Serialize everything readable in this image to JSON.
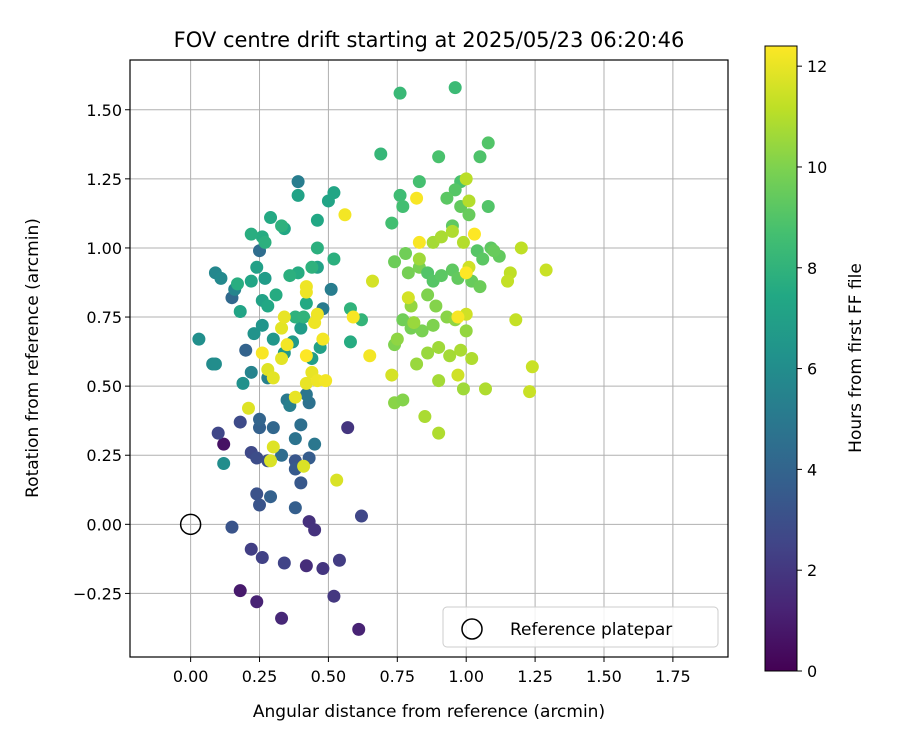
{
  "chart_data": {
    "type": "scatter",
    "title": "FOV centre drift starting at 2025/05/23 06:20:46",
    "xlabel": "Angular distance from reference (arcmin)",
    "ylabel": "Rotation from reference (arcmin)",
    "xlim": [
      -0.22,
      1.95
    ],
    "ylim": [
      -0.48,
      1.68
    ],
    "xticks": [
      "0.00",
      "0.25",
      "0.50",
      "0.75",
      "1.00",
      "1.25",
      "1.50",
      "1.75"
    ],
    "xtick_values": [
      0,
      0.25,
      0.5,
      0.75,
      1.0,
      1.25,
      1.5,
      1.75
    ],
    "yticks": [
      "−0.25",
      "0.00",
      "0.25",
      "0.50",
      "0.75",
      "1.00",
      "1.25",
      "1.50"
    ],
    "ytick_values": [
      -0.25,
      0,
      0.25,
      0.5,
      0.75,
      1.0,
      1.25,
      1.5
    ],
    "grid": true,
    "colorbar": {
      "label": "Hours from first FF file",
      "range": [
        0,
        12.4
      ],
      "ticks": [
        "0",
        "2",
        "4",
        "6",
        "8",
        "10",
        "12"
      ],
      "tick_values": [
        0,
        2,
        4,
        6,
        8,
        10,
        12
      ],
      "colormap": "viridis"
    },
    "legend": {
      "placement": "lower-right",
      "entries": [
        {
          "label": "Reference platepar",
          "marker": "open-circle"
        }
      ]
    },
    "reference_point": {
      "x": 0.0,
      "y": 0.0
    },
    "points": [
      [
        0.12,
        0.29,
        0.6
      ],
      [
        0.18,
        -0.24,
        0.9
      ],
      [
        0.24,
        -0.28,
        1.2
      ],
      [
        0.33,
        -0.34,
        1.4
      ],
      [
        0.61,
        -0.38,
        1.2
      ],
      [
        0.42,
        -0.15,
        1.6
      ],
      [
        0.43,
        0.01,
        1.7
      ],
      [
        0.45,
        -0.02,
        1.8
      ],
      [
        0.48,
        -0.16,
        1.9
      ],
      [
        0.52,
        -0.26,
        2.0
      ],
      [
        0.54,
        -0.13,
        2.2
      ],
      [
        0.22,
        -0.09,
        2.3
      ],
      [
        0.26,
        -0.12,
        2.4
      ],
      [
        0.34,
        -0.14,
        2.5
      ],
      [
        0.57,
        0.35,
        1.9
      ],
      [
        0.62,
        0.03,
        2.6
      ],
      [
        0.1,
        0.33,
        2.6
      ],
      [
        0.18,
        0.37,
        2.8
      ],
      [
        0.22,
        0.26,
        2.7
      ],
      [
        0.24,
        0.24,
        2.9
      ],
      [
        0.28,
        0.23,
        3.0
      ],
      [
        0.24,
        0.11,
        3.1
      ],
      [
        0.25,
        0.07,
        3.2
      ],
      [
        0.15,
        -0.01,
        3.2
      ],
      [
        0.38,
        0.23,
        3.3
      ],
      [
        0.4,
        0.15,
        3.4
      ],
      [
        0.38,
        0.2,
        3.5
      ],
      [
        0.43,
        0.24,
        3.6
      ],
      [
        0.38,
        0.06,
        3.7
      ],
      [
        0.29,
        0.1,
        3.8
      ],
      [
        0.25,
        0.35,
        3.8
      ],
      [
        0.25,
        0.38,
        4.0
      ],
      [
        0.3,
        0.35,
        4.1
      ],
      [
        0.2,
        0.63,
        3.9
      ],
      [
        0.15,
        0.82,
        4.2
      ],
      [
        0.25,
        0.99,
        4.4
      ],
      [
        0.33,
        0.25,
        4.4
      ],
      [
        0.4,
        0.36,
        4.5
      ],
      [
        0.43,
        0.44,
        4.6
      ],
      [
        0.38,
        0.31,
        4.7
      ],
      [
        0.42,
        0.47,
        4.8
      ],
      [
        0.45,
        0.29,
        4.9
      ],
      [
        0.35,
        0.45,
        5.0
      ],
      [
        0.48,
        0.78,
        5.1
      ],
      [
        0.51,
        0.85,
        5.2
      ],
      [
        0.39,
        1.24,
        5.2
      ],
      [
        0.36,
        0.43,
        5.3
      ],
      [
        0.28,
        0.53,
        5.4
      ],
      [
        0.22,
        0.55,
        5.5
      ],
      [
        0.16,
        0.85,
        5.6
      ],
      [
        0.09,
        0.91,
        5.7
      ],
      [
        0.11,
        0.89,
        5.8
      ],
      [
        0.08,
        0.58,
        5.9
      ],
      [
        0.09,
        0.58,
        6.0
      ],
      [
        0.12,
        0.22,
        6.0
      ],
      [
        0.03,
        0.67,
        6.1
      ],
      [
        0.19,
        0.51,
        6.2
      ],
      [
        0.23,
        0.69,
        6.3
      ],
      [
        0.26,
        0.72,
        6.4
      ],
      [
        0.3,
        0.67,
        6.5
      ],
      [
        0.34,
        0.62,
        6.6
      ],
      [
        0.37,
        0.66,
        6.7
      ],
      [
        0.4,
        0.71,
        6.8
      ],
      [
        0.44,
        0.6,
        6.9
      ],
      [
        0.47,
        0.64,
        7.0
      ],
      [
        0.46,
        0.93,
        7.1
      ],
      [
        0.39,
        1.19,
        7.1
      ],
      [
        0.5,
        1.17,
        7.2
      ],
      [
        0.52,
        1.2,
        7.3
      ],
      [
        0.46,
        1.1,
        7.4
      ],
      [
        0.34,
        1.07,
        7.4
      ],
      [
        0.29,
        1.11,
        7.5
      ],
      [
        0.26,
        1.04,
        7.6
      ],
      [
        0.22,
        1.05,
        7.7
      ],
      [
        0.27,
        1.02,
        7.8
      ],
      [
        0.33,
        1.08,
        7.9
      ],
      [
        0.44,
        0.93,
        7.9
      ],
      [
        0.39,
        0.91,
        7.6
      ],
      [
        0.42,
        0.8,
        7.5
      ],
      [
        0.46,
        1.0,
        7.8
      ],
      [
        0.17,
        0.87,
        7.7
      ],
      [
        0.18,
        0.77,
        7.2
      ],
      [
        0.22,
        0.88,
        7.3
      ],
      [
        0.24,
        0.93,
        7.0
      ],
      [
        0.27,
        0.89,
        6.8
      ],
      [
        0.26,
        0.81,
        7.1
      ],
      [
        0.28,
        0.79,
        7.4
      ],
      [
        0.31,
        0.83,
        7.6
      ],
      [
        0.36,
        0.9,
        7.8
      ],
      [
        0.38,
        0.75,
        7.9
      ],
      [
        0.41,
        0.75,
        8.0
      ],
      [
        0.58,
        0.66,
        7.6
      ],
      [
        0.52,
        0.96,
        7.8
      ],
      [
        0.58,
        0.78,
        8.0
      ],
      [
        0.62,
        0.74,
        8.1
      ],
      [
        0.69,
        1.34,
        8.2
      ],
      [
        0.76,
        1.56,
        8.3
      ],
      [
        0.96,
        1.58,
        8.4
      ],
      [
        0.76,
        1.19,
        8.5
      ],
      [
        0.77,
        1.15,
        8.6
      ],
      [
        0.73,
        1.09,
        8.6
      ],
      [
        0.83,
        1.24,
        8.7
      ],
      [
        0.9,
        1.33,
        8.8
      ],
      [
        0.98,
        1.24,
        8.8
      ],
      [
        1.05,
        1.33,
        8.9
      ],
      [
        1.08,
        1.38,
        9.0
      ],
      [
        0.96,
        1.21,
        9.1
      ],
      [
        0.93,
        1.18,
        9.2
      ],
      [
        0.95,
        1.08,
        9.3
      ],
      [
        0.98,
        1.15,
        9.4
      ],
      [
        1.01,
        1.12,
        9.5
      ],
      [
        1.08,
        1.15,
        9.0
      ],
      [
        1.04,
        0.99,
        9.1
      ],
      [
        1.06,
        0.96,
        9.2
      ],
      [
        1.09,
        1.0,
        9.3
      ],
      [
        1.12,
        0.97,
        9.4
      ],
      [
        1.1,
        0.99,
        9.5
      ],
      [
        0.74,
        0.95,
        9.6
      ],
      [
        0.78,
        0.98,
        9.7
      ],
      [
        0.79,
        0.91,
        9.8
      ],
      [
        0.83,
        0.93,
        9.9
      ],
      [
        0.86,
        0.91,
        9.0
      ],
      [
        0.88,
        0.88,
        9.1
      ],
      [
        0.91,
        0.9,
        9.2
      ],
      [
        0.95,
        0.92,
        9.3
      ],
      [
        0.97,
        0.89,
        9.4
      ],
      [
        1.02,
        0.88,
        9.5
      ],
      [
        1.05,
        0.86,
        9.6
      ],
      [
        0.77,
        0.74,
        9.7
      ],
      [
        0.8,
        0.71,
        9.8
      ],
      [
        0.84,
        0.7,
        9.9
      ],
      [
        0.88,
        0.72,
        10.0
      ],
      [
        0.86,
        0.83,
        10.0
      ],
      [
        0.89,
        0.79,
        10.1
      ],
      [
        0.93,
        0.75,
        10.2
      ],
      [
        0.96,
        0.74,
        10.3
      ],
      [
        1.0,
        0.7,
        10.4
      ],
      [
        0.82,
        0.58,
        10.5
      ],
      [
        0.86,
        0.62,
        10.5
      ],
      [
        0.9,
        0.64,
        10.6
      ],
      [
        0.94,
        0.61,
        10.7
      ],
      [
        0.98,
        0.63,
        10.8
      ],
      [
        1.02,
        0.6,
        10.9
      ],
      [
        1.07,
        0.49,
        10.9
      ],
      [
        0.99,
        0.49,
        10.6
      ],
      [
        0.9,
        0.52,
        10.7
      ],
      [
        0.85,
        0.39,
        10.8
      ],
      [
        0.9,
        0.33,
        10.9
      ],
      [
        0.74,
        0.44,
        10.2
      ],
      [
        0.77,
        0.45,
        10.1
      ],
      [
        0.74,
        0.65,
        10.0
      ],
      [
        0.75,
        0.67,
        10.3
      ],
      [
        0.8,
        0.79,
        10.4
      ],
      [
        0.81,
        0.73,
        10.5
      ],
      [
        0.83,
        0.96,
        10.6
      ],
      [
        0.88,
        1.02,
        10.7
      ],
      [
        0.91,
        1.04,
        10.8
      ],
      [
        0.95,
        1.06,
        10.9
      ],
      [
        0.99,
        1.02,
        11.0
      ],
      [
        1.01,
        1.17,
        11.0
      ],
      [
        1.0,
        1.25,
        11.1
      ],
      [
        1.16,
        0.91,
        11.2
      ],
      [
        1.2,
        1.0,
        11.2
      ],
      [
        1.15,
        0.88,
        11.3
      ],
      [
        1.18,
        0.74,
        11.3
      ],
      [
        1.23,
        0.48,
        11.4
      ],
      [
        1.24,
        0.57,
        11.4
      ],
      [
        1.29,
        0.92,
        11.4
      ],
      [
        1.01,
        0.93,
        11.5
      ],
      [
        1.0,
        0.76,
        11.5
      ],
      [
        0.97,
        0.54,
        11.5
      ],
      [
        0.79,
        0.82,
        11.6
      ],
      [
        0.73,
        0.54,
        11.6
      ],
      [
        0.66,
        0.88,
        11.6
      ],
      [
        0.53,
        0.16,
        11.7
      ],
      [
        0.41,
        0.21,
        11.7
      ],
      [
        0.29,
        0.23,
        11.7
      ],
      [
        0.3,
        0.28,
        11.8
      ],
      [
        0.21,
        0.42,
        11.8
      ],
      [
        0.28,
        0.56,
        11.8
      ],
      [
        0.3,
        0.53,
        11.9
      ],
      [
        0.33,
        0.6,
        11.9
      ],
      [
        0.33,
        0.71,
        11.9
      ],
      [
        0.38,
        0.46,
        12.0
      ],
      [
        0.42,
        0.51,
        12.0
      ],
      [
        0.44,
        0.55,
        12.0
      ],
      [
        0.46,
        0.52,
        12.1
      ],
      [
        0.46,
        0.76,
        12.1
      ],
      [
        0.42,
        0.86,
        12.1
      ],
      [
        0.42,
        0.84,
        12.1
      ],
      [
        0.49,
        0.52,
        12.2
      ],
      [
        0.48,
        0.67,
        12.2
      ],
      [
        0.56,
        1.12,
        12.2
      ],
      [
        0.65,
        0.61,
        12.2
      ],
      [
        0.59,
        0.75,
        12.3
      ],
      [
        0.82,
        1.18,
        12.3
      ],
      [
        0.83,
        1.02,
        12.3
      ],
      [
        0.97,
        0.75,
        12.3
      ],
      [
        1.0,
        0.91,
        12.4
      ],
      [
        1.03,
        1.05,
        12.4
      ],
      [
        0.35,
        0.65,
        12.2
      ],
      [
        0.26,
        0.62,
        12.3
      ],
      [
        0.45,
        0.73,
        12.1
      ],
      [
        0.42,
        0.61,
        12.4
      ],
      [
        0.34,
        0.75,
        12.0
      ]
    ]
  }
}
